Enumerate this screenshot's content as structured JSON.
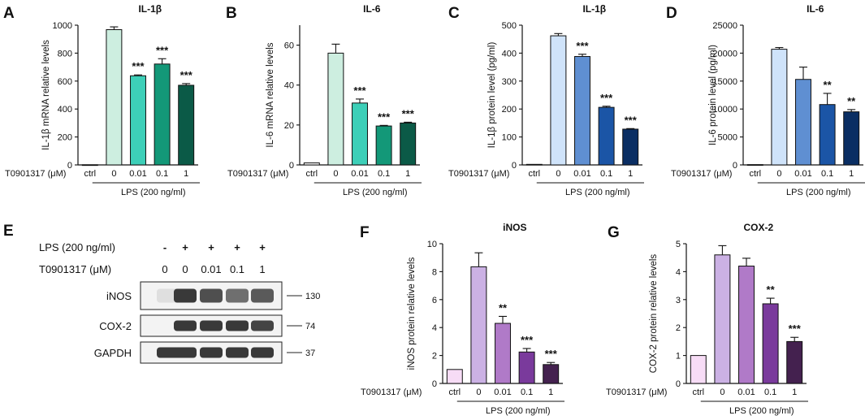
{
  "colors": {
    "il1b_mrna": [
      "#ffffff",
      "#cdeee0",
      "#3dcfb8",
      "#139878",
      "#0b5a47"
    ],
    "il6_mrna": [
      "#ffffff",
      "#cdeee0",
      "#3dcfb8",
      "#139878",
      "#0b5a47"
    ],
    "il1b_protein": [
      "#ffffff",
      "#cfe3fa",
      "#5f8fd2",
      "#1b55a6",
      "#0a2e63"
    ],
    "il6_protein": [
      "#ffffff",
      "#cfe3fa",
      "#5f8fd2",
      "#1b55a6",
      "#0a2e63"
    ],
    "inos": [
      "#f7dcf6",
      "#cbb1e4",
      "#b07ac8",
      "#7a3a9c",
      "#44214f"
    ],
    "cox2": [
      "#f7dcf6",
      "#cbb1e4",
      "#b07ac8",
      "#7a3a9c",
      "#44214f"
    ]
  },
  "common": {
    "treatment_label": "T0901317 (μM)",
    "lps_label": "LPS (200 ng/ml)"
  },
  "chart_data": [
    {
      "panel": "A",
      "type": "bar",
      "title": "IL-1β",
      "ylabel": "IL-1β  mRNA relative levels",
      "categories": [
        "ctrl",
        "0",
        "0.01",
        "0.1",
        "1"
      ],
      "values": [
        1,
        968,
        638,
        722,
        570
      ],
      "errors": [
        0,
        20,
        6,
        38,
        12
      ],
      "significance": [
        "",
        "",
        "***",
        "***",
        "***"
      ],
      "ylim": [
        0,
        1000
      ],
      "yticks": [
        "0",
        "200",
        "400",
        "600",
        "800",
        "1000"
      ]
    },
    {
      "panel": "B",
      "type": "bar",
      "title": "IL-6",
      "ylabel": "IL-6 mRNA relative levels",
      "categories": [
        "ctrl",
        "0",
        "0.01",
        "0.1",
        "1"
      ],
      "values": [
        1,
        56,
        31,
        19.5,
        21
      ],
      "errors": [
        0,
        4.5,
        2,
        0.3,
        0.4
      ],
      "significance": [
        "",
        "",
        "***",
        "***",
        "***"
      ],
      "ylim": [
        0,
        70
      ],
      "yticks": [
        "0",
        "20",
        "40",
        "60"
      ]
    },
    {
      "panel": "C",
      "type": "bar",
      "title": "IL-1β",
      "ylabel": "IL-1β  protein level (pg/ml)",
      "categories": [
        "ctrl",
        "0",
        "0.01",
        "0.1",
        "1"
      ],
      "values": [
        2,
        462,
        388,
        206,
        128
      ],
      "errors": [
        0,
        8,
        8,
        4,
        2
      ],
      "significance": [
        "",
        "",
        "***",
        "***",
        "***"
      ],
      "ylim": [
        0,
        500
      ],
      "yticks": [
        "0",
        "100",
        "200",
        "300",
        "400",
        "500"
      ]
    },
    {
      "panel": "D",
      "type": "bar",
      "title": "IL-6",
      "ylabel": "IL-6 protein level (pg/ml)",
      "categories": [
        "ctrl",
        "0",
        "0.01",
        "0.1",
        "1"
      ],
      "values": [
        50,
        20700,
        15300,
        10800,
        9500
      ],
      "errors": [
        0,
        300,
        2200,
        2000,
        400
      ],
      "significance": [
        "",
        "",
        "",
        "**",
        "**"
      ],
      "ylim": [
        0,
        25000
      ],
      "yticks": [
        "0",
        "5000",
        "10000",
        "15000",
        "20000",
        "25000"
      ]
    },
    {
      "panel": "F",
      "type": "bar",
      "title": "iNOS",
      "ylabel": "iNOS protein relative levels",
      "categories": [
        "ctrl",
        "0",
        "0.01",
        "0.1",
        "1"
      ],
      "values": [
        1,
        8.35,
        4.3,
        2.25,
        1.35
      ],
      "errors": [
        0,
        1.0,
        0.5,
        0.25,
        0.15
      ],
      "significance": [
        "",
        "",
        "**",
        "***",
        "***"
      ],
      "ylim": [
        0,
        10
      ],
      "yticks": [
        "0",
        "2",
        "4",
        "6",
        "8",
        "10"
      ]
    },
    {
      "panel": "G",
      "type": "bar",
      "title": "COX-2",
      "ylabel": "COX-2 protein relative levels",
      "categories": [
        "ctrl",
        "0",
        "0.01",
        "0.1",
        "1"
      ],
      "values": [
        1,
        4.6,
        4.2,
        2.85,
        1.5
      ],
      "errors": [
        0,
        0.33,
        0.28,
        0.2,
        0.15
      ],
      "significance": [
        "",
        "",
        "",
        "**",
        "***"
      ],
      "ylim": [
        0,
        5
      ],
      "yticks": [
        "0",
        "1",
        "2",
        "3",
        "4",
        "5"
      ]
    }
  ],
  "western_blot": {
    "panel": "E",
    "row1_label": "LPS (200 ng/ml)",
    "row1_values": [
      "-",
      "+",
      "+",
      "+",
      "+"
    ],
    "row2_label": "T0901317 (μM)",
    "row2_values": [
      "0",
      "0",
      "0.01",
      "0.1",
      "1"
    ],
    "bands": [
      {
        "name": "iNOS",
        "kda": "130",
        "intensity": [
          0.08,
          0.85,
          0.75,
          0.6,
          0.7
        ]
      },
      {
        "name": "COX-2",
        "kda": "74",
        "intensity": [
          0.0,
          0.85,
          0.85,
          0.85,
          0.8
        ]
      },
      {
        "name": "GAPDH",
        "kda": "37",
        "intensity": [
          0.85,
          0.85,
          0.85,
          0.85,
          0.85
        ]
      }
    ]
  }
}
